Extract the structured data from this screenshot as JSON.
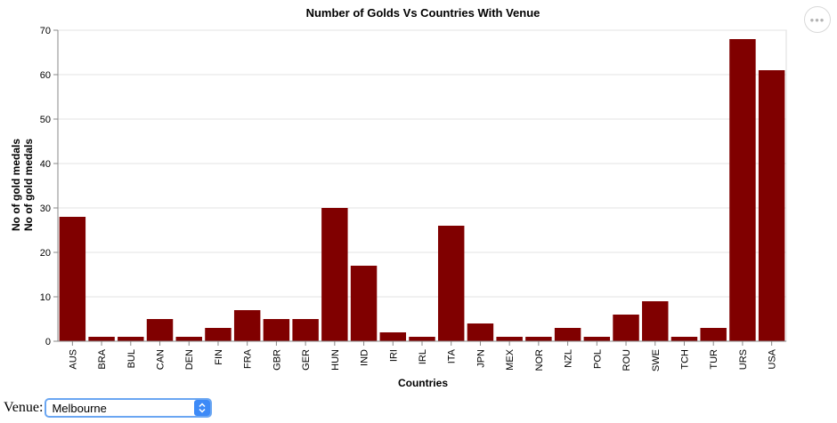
{
  "chart_data": {
    "type": "bar",
    "title": "Number of Golds Vs Countries With Venue",
    "xlabel": "Countries",
    "ylabel_lines": [
      "No of gold medals",
      "No of gold medals"
    ],
    "categories": [
      "AUS",
      "BRA",
      "BUL",
      "CAN",
      "DEN",
      "FIN",
      "FRA",
      "GBR",
      "GER",
      "HUN",
      "IND",
      "IRI",
      "IRL",
      "ITA",
      "JPN",
      "MEX",
      "NOR",
      "NZL",
      "POL",
      "ROU",
      "SWE",
      "TCH",
      "TUR",
      "URS",
      "USA"
    ],
    "values": [
      28,
      1,
      1,
      5,
      1,
      3,
      7,
      5,
      5,
      30,
      17,
      2,
      1,
      26,
      4,
      1,
      1,
      3,
      1,
      6,
      9,
      1,
      3,
      68,
      61
    ],
    "ylim": [
      0,
      70
    ],
    "yticks": [
      0,
      10,
      20,
      30,
      40,
      50,
      60,
      70
    ],
    "bar_color": "#800000",
    "grid": true
  },
  "controls": {
    "more_icon": "more-horizontal-icon",
    "more_text": "•••",
    "venue_label": "Venue:",
    "venue_selected": "Melbourne",
    "select_icon": "up-down-chevron-icon"
  }
}
